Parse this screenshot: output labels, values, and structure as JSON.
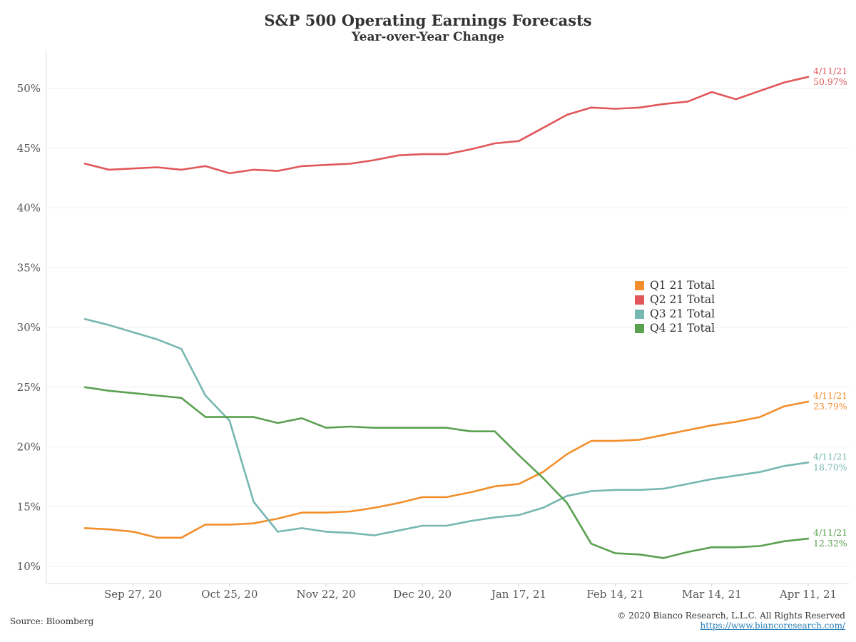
{
  "chart_data": {
    "type": "line",
    "title": "S&P 500 Operating Earnings Forecasts",
    "subtitle": "Year-over-Year Change",
    "x_tick_labels": [
      "Sep 27, 20",
      "Oct 25, 20",
      "Nov 22, 20",
      "Dec 20, 20",
      "Jan 17, 21",
      "Feb 14, 21",
      "Mar 14, 21",
      "Apr 11, 21"
    ],
    "x": [
      "Sep 13, 20",
      "Sep 20, 20",
      "Sep 27, 20",
      "Oct 4, 20",
      "Oct 11, 20",
      "Oct 18, 20",
      "Oct 25, 20",
      "Nov 1, 20",
      "Nov 8, 20",
      "Nov 15, 20",
      "Nov 22, 20",
      "Nov 29, 20",
      "Dec 6, 20",
      "Dec 13, 20",
      "Dec 20, 20",
      "Dec 27, 20",
      "Jan 3, 21",
      "Jan 10, 21",
      "Jan 17, 21",
      "Jan 24, 21",
      "Jan 31, 21",
      "Feb 7, 21",
      "Feb 14, 21",
      "Feb 21, 21",
      "Feb 28, 21",
      "Mar 7, 21",
      "Mar 14, 21",
      "Mar 21, 21",
      "Mar 28, 21",
      "Apr 4, 21",
      "Apr 11, 21"
    ],
    "y_ticks": [
      "10%",
      "15%",
      "20%",
      "25%",
      "30%",
      "35%",
      "40%",
      "45%",
      "50%"
    ],
    "ylim": [
      10,
      51
    ],
    "grid": true,
    "legend_placement": "center-right",
    "series": [
      {
        "name": "Q1 21 Total",
        "color": "#f28e2b",
        "values": [
          13.2,
          13.1,
          12.9,
          12.4,
          12.4,
          13.5,
          13.5,
          13.6,
          14.0,
          14.5,
          14.5,
          14.6,
          14.9,
          15.3,
          15.8,
          15.8,
          16.2,
          16.7,
          16.9,
          17.9,
          19.4,
          20.5,
          20.5,
          20.6,
          21.0,
          21.4,
          21.8,
          22.1,
          22.5,
          23.4,
          23.79
        ],
        "end_label_date": "4/11/21",
        "end_label_value": "23.79%"
      },
      {
        "name": "Q2 21 Total",
        "color": "#e15759",
        "values": [
          43.7,
          43.2,
          43.3,
          43.4,
          43.2,
          43.5,
          42.9,
          43.2,
          43.1,
          43.5,
          43.6,
          43.7,
          44.0,
          44.4,
          44.5,
          44.5,
          44.9,
          45.4,
          45.6,
          46.7,
          47.8,
          48.4,
          48.3,
          48.4,
          48.7,
          48.9,
          49.7,
          49.1,
          49.8,
          50.5,
          50.97
        ],
        "end_label_date": "4/11/21",
        "end_label_value": "50.97%"
      },
      {
        "name": "Q3 21 Total",
        "color": "#76b7b2",
        "values": [
          30.7,
          30.2,
          29.6,
          29.0,
          28.2,
          24.3,
          22.2,
          15.4,
          12.9,
          13.2,
          12.9,
          12.8,
          12.6,
          13.0,
          13.4,
          13.4,
          13.8,
          14.1,
          14.3,
          14.9,
          15.9,
          16.3,
          16.4,
          16.4,
          16.5,
          16.9,
          17.3,
          17.6,
          17.9,
          18.4,
          18.7
        ],
        "end_label_date": "4/11/21",
        "end_label_value": "18.70%"
      },
      {
        "name": "Q4 21 Total",
        "color": "#59a14f",
        "values": [
          25.0,
          24.7,
          24.5,
          24.3,
          24.1,
          22.5,
          22.5,
          22.5,
          22.0,
          22.4,
          21.6,
          21.7,
          21.6,
          21.6,
          21.6,
          21.6,
          21.3,
          21.3,
          19.3,
          17.4,
          15.3,
          11.9,
          11.1,
          11.0,
          10.7,
          11.2,
          11.6,
          11.6,
          11.7,
          12.1,
          12.32
        ],
        "end_label_date": "4/11/21",
        "end_label_value": "12.32%"
      }
    ]
  },
  "footer": {
    "source": "Source: Bloomberg",
    "copyright": "© 2020 Bianco Research, L.L.C. All Rights Reserved",
    "url": "https://www.biancoresearch.com/"
  }
}
